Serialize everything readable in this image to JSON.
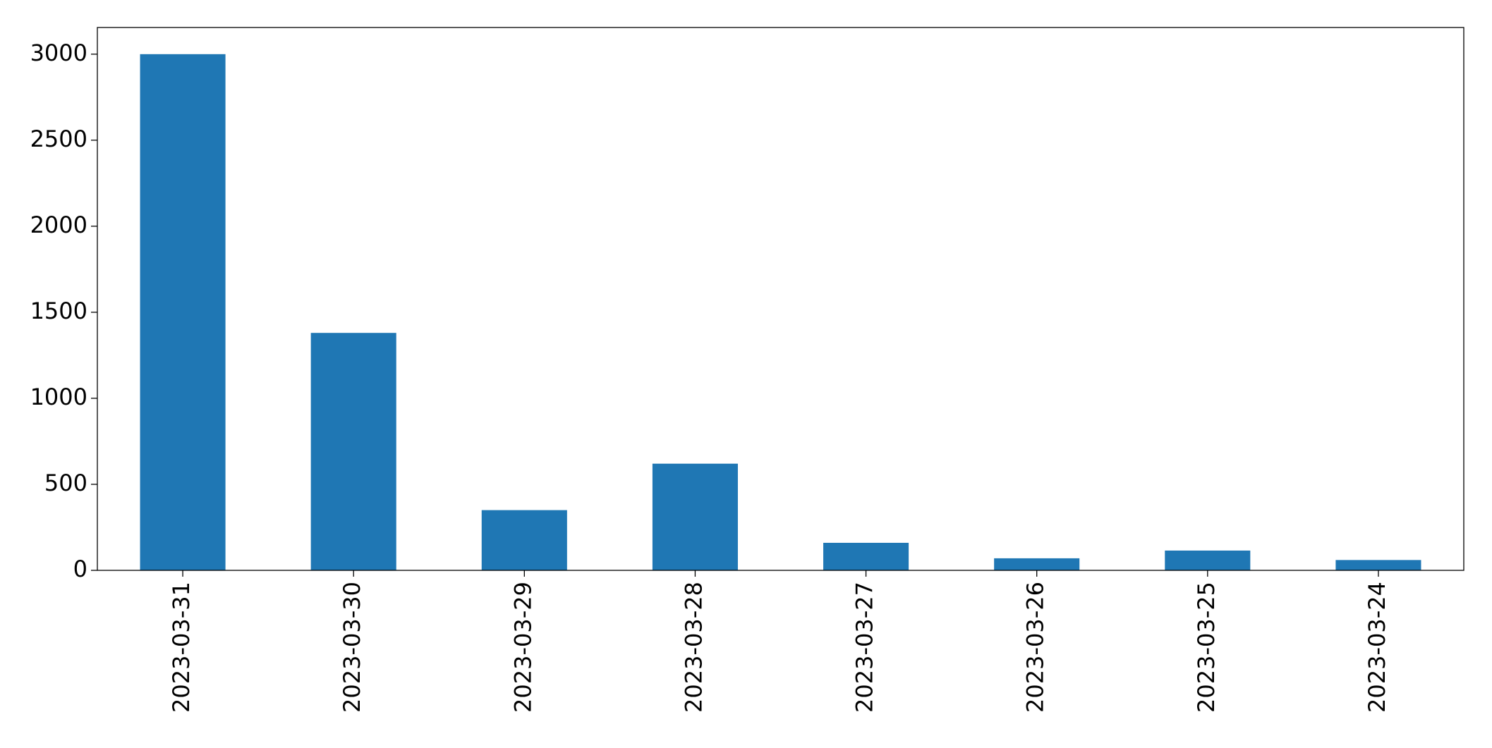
{
  "chart_data": {
    "type": "bar",
    "categories": [
      "2023-03-31",
      "2023-03-30",
      "2023-03-29",
      "2023-03-28",
      "2023-03-27",
      "2023-03-26",
      "2023-03-25",
      "2023-03-24"
    ],
    "values": [
      3000,
      1380,
      350,
      620,
      160,
      70,
      115,
      60
    ],
    "color": "#1f77b4",
    "ylim": [
      0,
      3155
    ],
    "yticks": [
      0,
      500,
      1000,
      1500,
      2000,
      2500,
      3000
    ],
    "grid": false
  }
}
